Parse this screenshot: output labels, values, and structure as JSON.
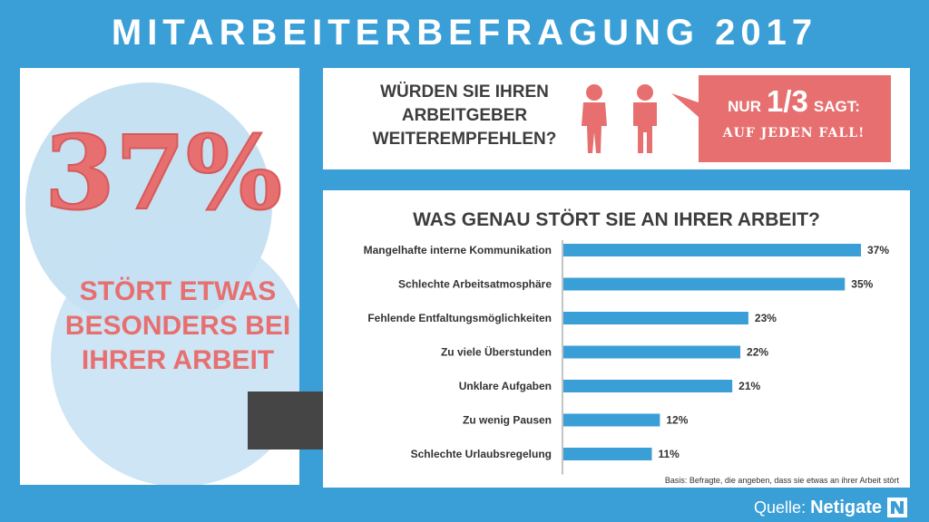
{
  "title": "MITARBEITERBEFRAGUNG 2017",
  "left": {
    "big_percent": "37%",
    "subtitle": "STÖRT ETWAS BESONDERS BEI IHRER ARBEIT"
  },
  "top": {
    "question": "WÜRDEN SIE IHREN ARBEITGEBER WEITEREMPFEHLEN?",
    "callout_prefix": "NUR",
    "callout_fraction": "1/3",
    "callout_suffix": "SAGT:",
    "callout_emphasis": "AUF JEDEN FALL!"
  },
  "chart_data": {
    "type": "bar",
    "orientation": "horizontal",
    "title": "WAS GENAU STÖRT SIE AN IHRER ARBEIT?",
    "categories": [
      "Mangelhafte interne Kommunikation",
      "Schlechte Arbeitsatmosphäre",
      "Fehlende Entfaltungsmöglichkeiten",
      "Zu viele Überstunden",
      "Unklare Aufgaben",
      "Zu wenig Pausen",
      "Schlechte Urlaubsregelung"
    ],
    "values": [
      37,
      35,
      23,
      22,
      21,
      12,
      11
    ],
    "value_labels": [
      "37%",
      "35%",
      "23%",
      "22%",
      "21%",
      "12%",
      "11%"
    ],
    "xlim": [
      0,
      37
    ],
    "grid": false,
    "note": "Basis: Befragte, die angeben, dass sie etwas an ihrer Arbeit stört"
  },
  "source": {
    "label": "Quelle:",
    "brand": "Netigate"
  },
  "colors": {
    "background": "#3a9fd6",
    "accent": "#e76f6f",
    "bar": "#3a9fd6",
    "arrow": "#454545"
  }
}
